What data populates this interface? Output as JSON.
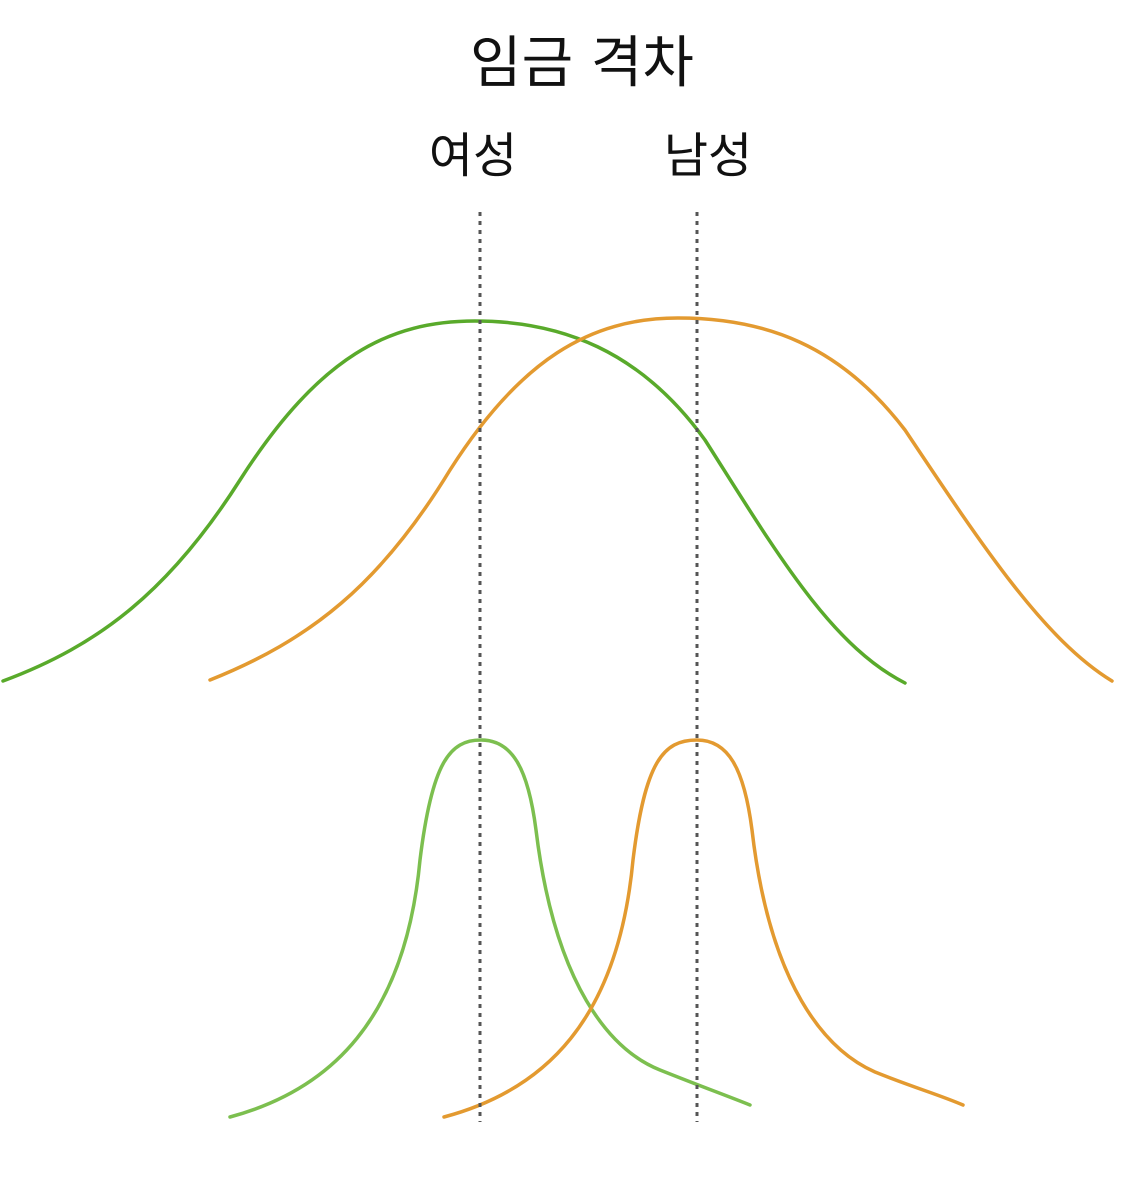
{
  "title": "임금 격차",
  "groups": {
    "women": {
      "label": "여성",
      "color": "#59aa2b",
      "color_light": "#7cbf4f"
    },
    "men": {
      "label": "남성",
      "color": "#e39a30",
      "color_light": "#e39a30"
    }
  },
  "rows": [
    {
      "id": "wide"
    },
    {
      "id": "narrow"
    }
  ]
}
